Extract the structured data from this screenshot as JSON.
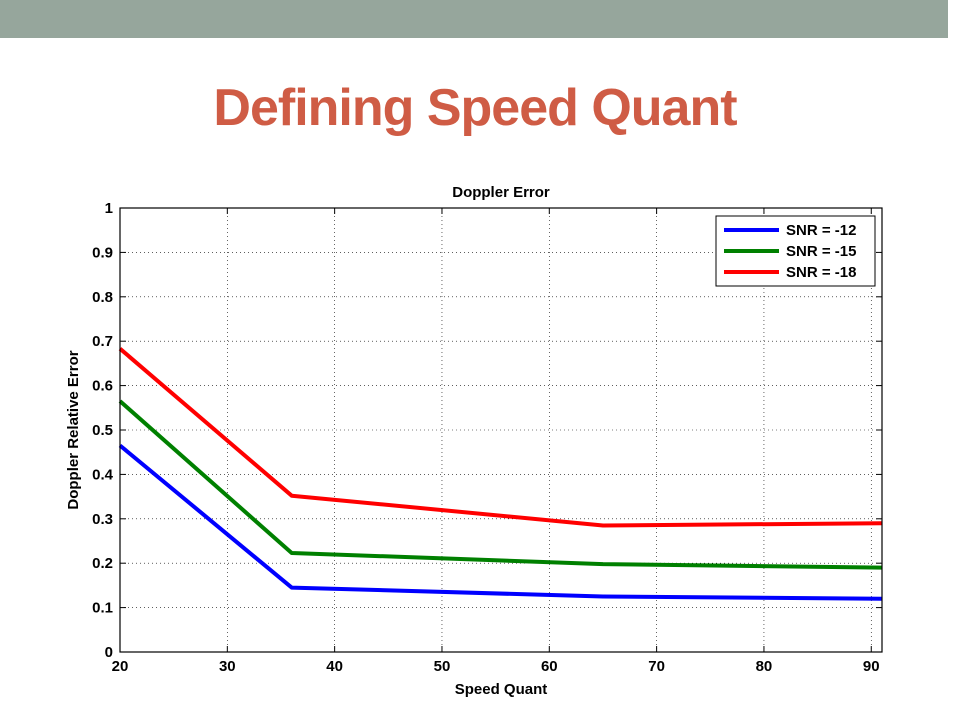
{
  "slide": {
    "title": "Defining Speed Quant",
    "bar_color": "#96a69c",
    "title_color": "#cf5c45"
  },
  "chart_data": {
    "type": "line",
    "title": "Doppler Error",
    "xlabel": "Speed Quant",
    "ylabel": "Doppler Relative Error",
    "xlim": [
      20,
      91
    ],
    "ylim": [
      0,
      1
    ],
    "xticks": [
      20,
      30,
      40,
      50,
      60,
      70,
      80,
      90
    ],
    "yticks": [
      0,
      0.1,
      0.2,
      0.3,
      0.4,
      0.5,
      0.6,
      0.7,
      0.8,
      0.9,
      1
    ],
    "grid": true,
    "legend_position": "top-right",
    "series": [
      {
        "name": "SNR = -12",
        "color": "#0000ff",
        "x": [
          20,
          36,
          65,
          91
        ],
        "y": [
          0.465,
          0.145,
          0.125,
          0.12
        ]
      },
      {
        "name": "SNR = -15",
        "color": "#008000",
        "x": [
          20,
          36,
          65,
          91
        ],
        "y": [
          0.565,
          0.223,
          0.198,
          0.19
        ]
      },
      {
        "name": "SNR = -18",
        "color": "#ff0000",
        "x": [
          20,
          36,
          65,
          91
        ],
        "y": [
          0.683,
          0.352,
          0.285,
          0.29
        ]
      }
    ]
  }
}
